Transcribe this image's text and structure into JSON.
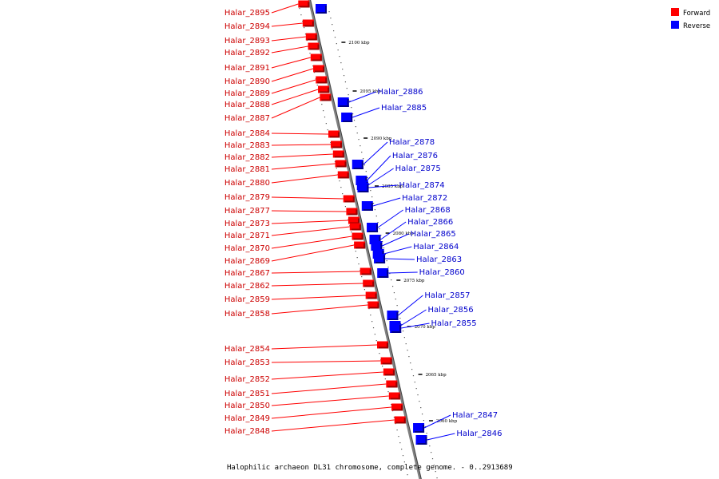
{
  "caption": "Halophilic archaeon DL31 chromosome, complete genome. - 0..2913689",
  "legend": [
    {
      "label": "Forward",
      "color": "#ff0000"
    },
    {
      "label": "Reverse",
      "color": "#0000ff"
    }
  ],
  "colors": {
    "forward": "#ff0000",
    "forward_label": "#cc0000",
    "reverse": "#0000ff",
    "reverse_label": "#0000cc",
    "axis": "#808080"
  },
  "ticks": [
    "2100 kbp",
    "2095 kbp",
    "2090 kbp",
    "2085 kbp",
    "2080 kbp",
    "2075 kbp",
    "2070 kbp",
    "2065 kbp",
    "2060 kbp"
  ],
  "forward_genes": [
    "Halar_2895",
    "Halar_2894",
    "Halar_2893",
    "Halar_2892",
    "Halar_2891",
    "Halar_2890",
    "Halar_2889",
    "Halar_2888",
    "Halar_2887",
    "Halar_2884",
    "Halar_2883",
    "Halar_2882",
    "Halar_2881",
    "Halar_2880",
    "Halar_2879",
    "Halar_2877",
    "Halar_2873",
    "Halar_2871",
    "Halar_2870",
    "Halar_2869",
    "Halar_2867",
    "Halar_2862",
    "Halar_2859",
    "Halar_2858",
    "Halar_2854",
    "Halar_2853",
    "Halar_2852",
    "Halar_2851",
    "Halar_2850",
    "Halar_2849",
    "Halar_2848"
  ],
  "reverse_genes": [
    "Halar_2886",
    "Halar_2885",
    "Halar_2878",
    "Halar_2876",
    "Halar_2875",
    "Halar_2874",
    "Halar_2872",
    "Halar_2868",
    "Halar_2866",
    "Halar_2865",
    "Halar_2864",
    "Halar_2863",
    "Halar_2860",
    "Halar_2857",
    "Halar_2856",
    "Halar_2855",
    "Halar_2847",
    "Halar_2846"
  ]
}
